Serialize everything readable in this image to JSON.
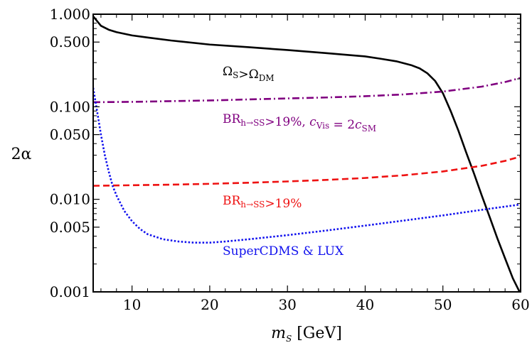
{
  "chart_data": {
    "type": "line",
    "title": "",
    "xlabel": "m",
    "xlabel_sub": "S",
    "xlabel_unit": " [GeV]",
    "ylabel": "2α",
    "xlim": [
      5,
      60
    ],
    "ylim": [
      0.001,
      1.0
    ],
    "yscale": "log",
    "grid": false,
    "xticks": [
      10,
      20,
      30,
      40,
      50,
      60
    ],
    "xtick_labels": [
      "10",
      "20",
      "30",
      "40",
      "50",
      "60"
    ],
    "yticks": [
      0.001,
      0.005,
      0.01,
      0.05,
      0.1,
      0.5,
      1.0
    ],
    "ytick_labels": [
      "0.001",
      "0.005",
      "0.010",
      "0.050",
      "0.100",
      "0.500",
      "1.000"
    ],
    "series": [
      {
        "label_parts": [
          [
            "Ω",
            ""
          ],
          [
            "S",
            "sub"
          ],
          [
            ">Ω",
            ""
          ],
          [
            "DM",
            "sub"
          ]
        ],
        "color": "#000000",
        "style": "solid",
        "x": [
          5,
          6,
          7,
          8,
          10,
          12,
          15,
          20,
          25,
          30,
          35,
          40,
          42,
          44,
          46,
          47,
          48,
          49,
          50,
          51,
          52,
          53,
          54,
          55,
          56,
          57,
          58,
          59,
          60
        ],
        "y": [
          0.95,
          0.75,
          0.68,
          0.64,
          0.59,
          0.56,
          0.52,
          0.47,
          0.44,
          0.41,
          0.38,
          0.35,
          0.33,
          0.31,
          0.28,
          0.26,
          0.23,
          0.19,
          0.14,
          0.09,
          0.055,
          0.032,
          0.019,
          0.011,
          0.0065,
          0.0038,
          0.0023,
          0.0014,
          0.00095
        ]
      },
      {
        "label_parts": [
          [
            "BR",
            ""
          ],
          [
            "h→SS",
            "sub"
          ],
          [
            ">19%, ",
            ""
          ],
          [
            "c",
            "italic"
          ],
          [
            "Vis",
            "sub"
          ],
          [
            " = 2",
            ""
          ],
          [
            "c",
            "italic"
          ],
          [
            "SM",
            "sub"
          ]
        ],
        "color": "#800080",
        "style": "dashdot",
        "x": [
          5,
          10,
          15,
          20,
          25,
          30,
          35,
          40,
          45,
          50,
          55,
          58,
          60
        ],
        "y": [
          0.112,
          0.113,
          0.115,
          0.117,
          0.12,
          0.123,
          0.126,
          0.13,
          0.136,
          0.146,
          0.165,
          0.185,
          0.205
        ]
      },
      {
        "label_parts": [
          [
            "BR",
            ""
          ],
          [
            "h→SS",
            "sub"
          ],
          [
            ">19%",
            ""
          ]
        ],
        "color": "#ee1111",
        "style": "dashed",
        "x": [
          5,
          10,
          15,
          20,
          25,
          30,
          35,
          40,
          45,
          50,
          55,
          58,
          60
        ],
        "y": [
          0.014,
          0.0142,
          0.0144,
          0.0147,
          0.0151,
          0.0156,
          0.0162,
          0.017,
          0.0182,
          0.02,
          0.023,
          0.026,
          0.029
        ]
      },
      {
        "label_parts": [
          [
            "SuperCDMS & LUX",
            ""
          ]
        ],
        "color": "#1111ee",
        "style": "dotted",
        "x": [
          5,
          5.5,
          6,
          6.5,
          7,
          7.5,
          8,
          9,
          10,
          11,
          12,
          14,
          16,
          18,
          20,
          22,
          25,
          30,
          35,
          40,
          45,
          50,
          55,
          60
        ],
        "y": [
          0.16,
          0.09,
          0.05,
          0.03,
          0.02,
          0.014,
          0.011,
          0.0075,
          0.0058,
          0.0048,
          0.0042,
          0.0037,
          0.0035,
          0.0034,
          0.0034,
          0.0035,
          0.0037,
          0.0041,
          0.0046,
          0.0052,
          0.0059,
          0.0067,
          0.0077,
          0.0088
        ]
      }
    ]
  }
}
